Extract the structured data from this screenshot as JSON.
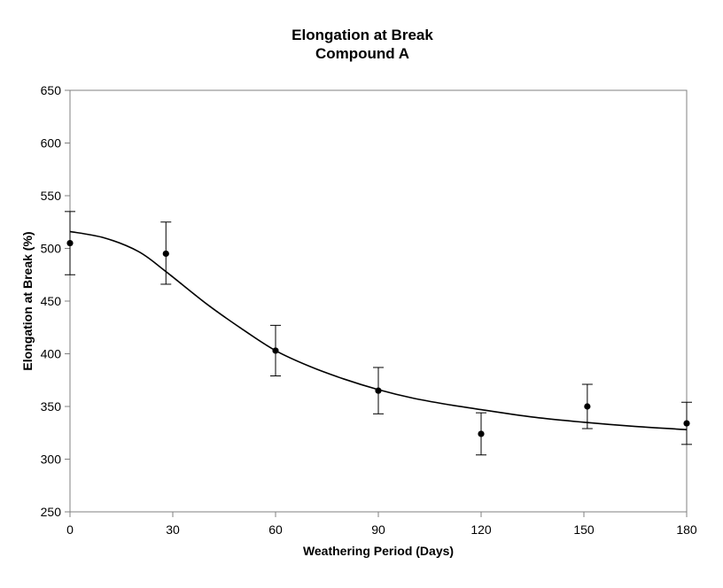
{
  "chart_data": {
    "type": "scatter",
    "title": "Elongation at Break",
    "subtitle": "Compound A",
    "xlabel": "Weathering Period (Days)",
    "ylabel": "Elongation at Break (%)",
    "xlim": [
      0,
      180
    ],
    "ylim": [
      250,
      650
    ],
    "xticks": [
      0,
      30,
      60,
      90,
      120,
      150,
      180
    ],
    "yticks": [
      250,
      300,
      350,
      400,
      450,
      500,
      550,
      600,
      650
    ],
    "grid": false,
    "legend": "none",
    "colors": {
      "marker": "#000000",
      "line": "#000000",
      "axis": "#808080"
    },
    "series": [
      {
        "kind": "points_with_error_bars",
        "x": [
          0,
          28,
          60,
          90,
          120,
          151,
          180
        ],
        "y": [
          505,
          495,
          403,
          365,
          324,
          350,
          334
        ],
        "error_low": [
          475,
          466,
          379,
          343,
          304,
          329,
          314
        ],
        "error_high": [
          535,
          525,
          427,
          387,
          344,
          371,
          354
        ]
      },
      {
        "kind": "fitted_curve",
        "x": [
          0,
          10,
          20,
          28,
          40,
          50,
          60,
          70,
          80,
          90,
          100,
          110,
          120,
          135,
          150,
          165,
          180
        ],
        "y": [
          516,
          510,
          497,
          478,
          447,
          424,
          403,
          388,
          376,
          366,
          358,
          352,
          347,
          340,
          335,
          331,
          328
        ]
      }
    ]
  }
}
